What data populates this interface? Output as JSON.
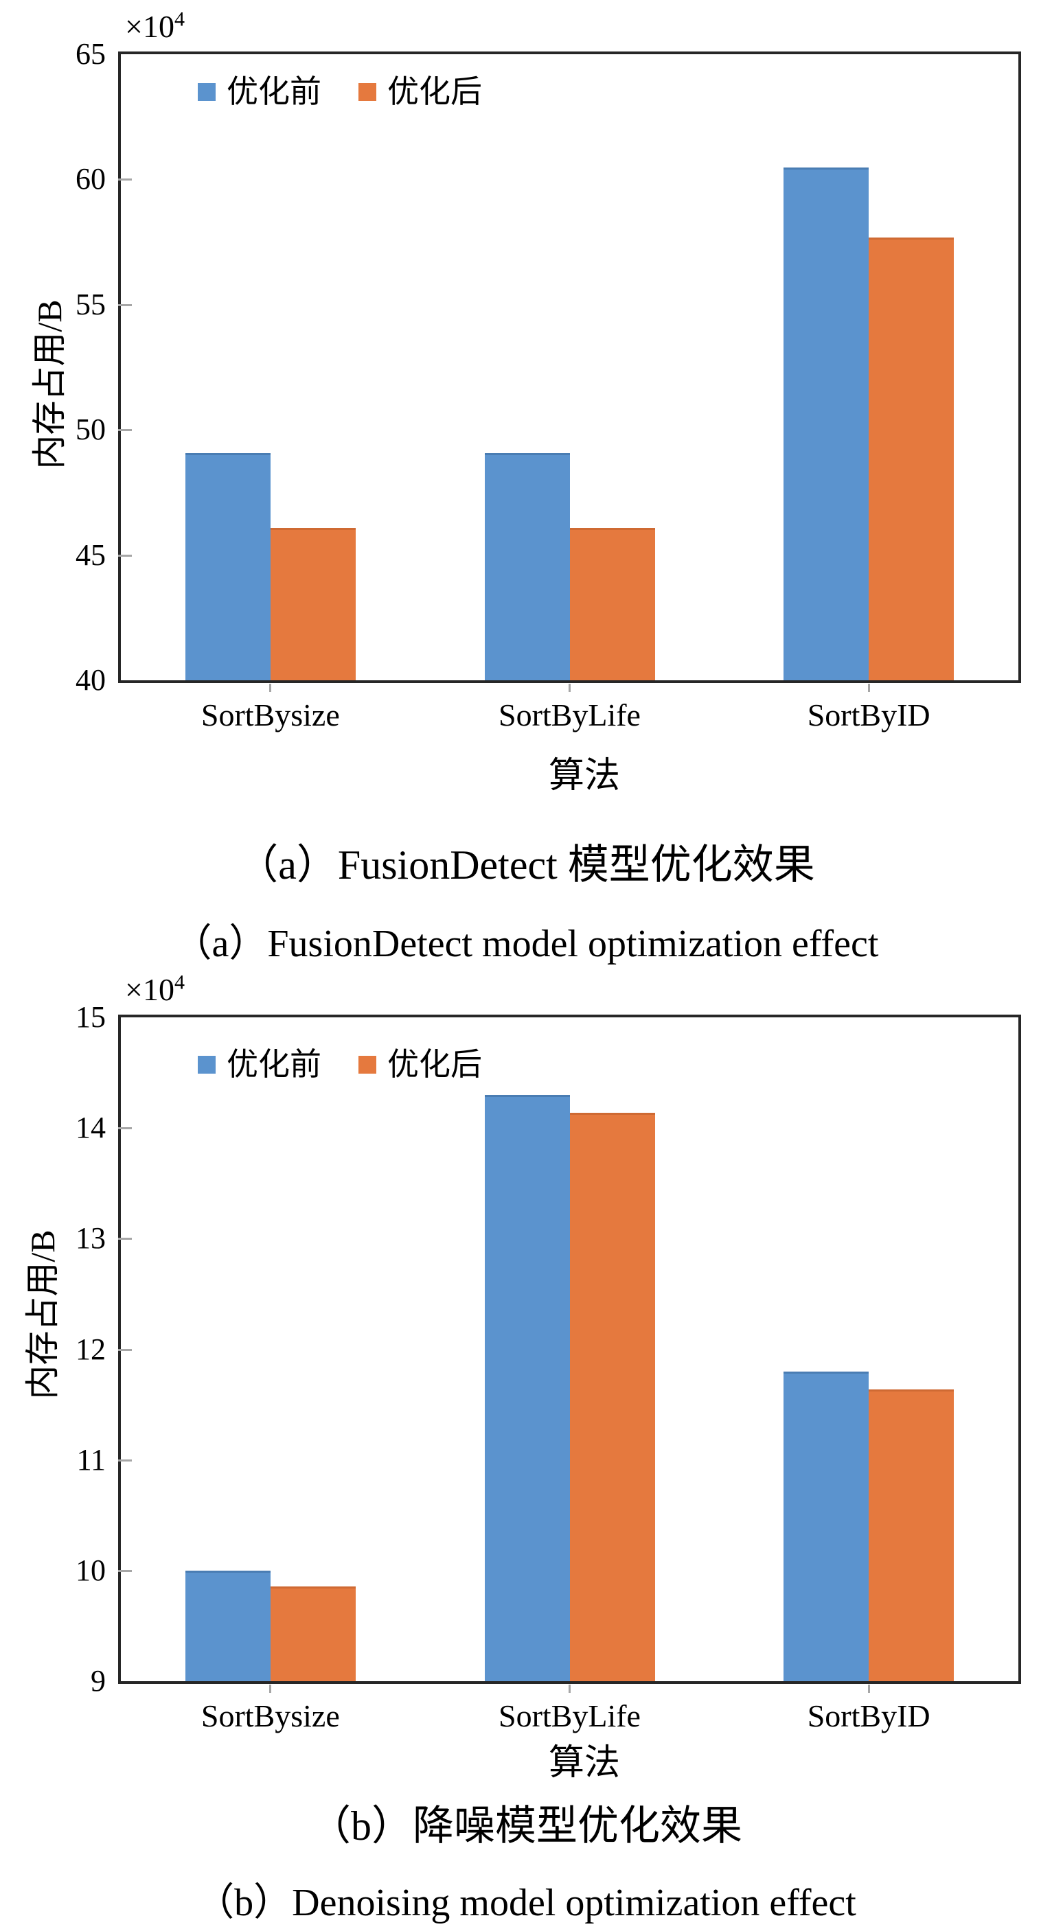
{
  "colors": {
    "before": "#5b93ce",
    "before_edge": "#4a7db3",
    "after": "#e5793e",
    "after_edge": "#cf6a33",
    "axis": "#262626",
    "tick": "#a6a6a6",
    "text": "#000000"
  },
  "chart_data": [
    {
      "type": "bar",
      "panel": "a",
      "caption_zh": "（a）FusionDetect 模型优化效果",
      "caption_en": "（a）FusionDetect model optimization effect",
      "ylabel": "内存占用/B",
      "xlabel": "算法",
      "offset_base": "×10",
      "offset_exp": "4",
      "categories": [
        "SortBysize",
        "SortByLife",
        "SortByID"
      ],
      "series": [
        {
          "name": "优化前",
          "values": [
            49.0,
            49.0,
            60.4
          ]
        },
        {
          "name": "优化后",
          "values": [
            46.0,
            46.0,
            57.6
          ]
        }
      ],
      "ylim": [
        40,
        65
      ],
      "yticks": [
        40,
        45,
        50,
        55,
        60,
        65
      ],
      "legend_position": "inside-top-left",
      "grid": false
    },
    {
      "type": "bar",
      "panel": "b",
      "caption_zh": "（b）降噪模型优化效果",
      "caption_en": "（b）Denoising model optimization effect",
      "ylabel": "内存占用/B",
      "xlabel": "算法",
      "offset_base": "×10",
      "offset_exp": "4",
      "categories": [
        "SortBysize",
        "SortByLife",
        "SortByID"
      ],
      "series": [
        {
          "name": "优化前",
          "values": [
            9.98,
            14.28,
            11.78
          ]
        },
        {
          "name": "优化后",
          "values": [
            9.84,
            14.12,
            11.62
          ]
        }
      ],
      "ylim": [
        9,
        15
      ],
      "yticks": [
        9,
        10,
        11,
        12,
        13,
        14,
        15
      ],
      "legend_position": "inside-top-left",
      "grid": false
    }
  ]
}
